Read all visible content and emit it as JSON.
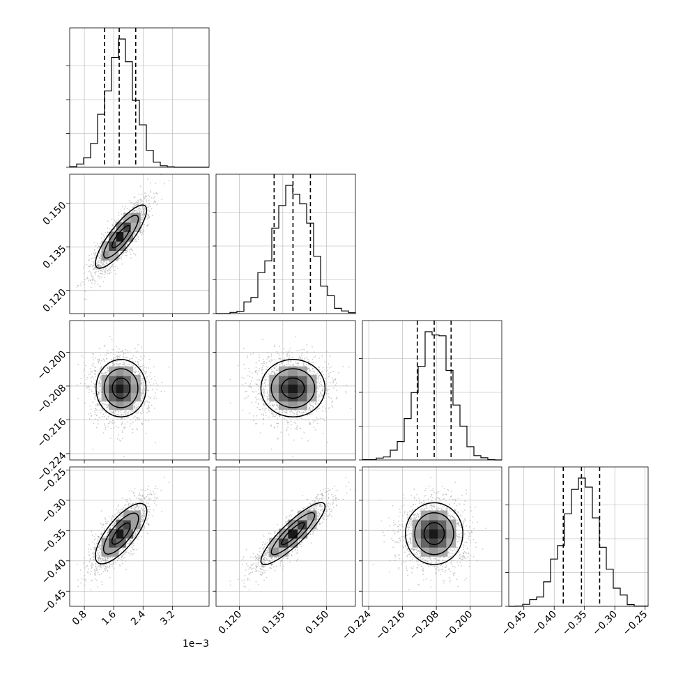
{
  "chart_data": {
    "type": "corner",
    "parameters": [
      {
        "range": [
          0.4,
          4.2
        ],
        "ticks": [
          "0.8",
          "1.6",
          "2.4",
          "3.2"
        ],
        "tick_values": [
          0.8,
          1.6,
          2.4,
          3.2
        ],
        "offset_label": "1e−3",
        "quantiles": [
          1.35,
          1.75,
          2.2
        ],
        "mean": 1.8,
        "std": 0.4
      },
      {
        "range": [
          0.112,
          0.16
        ],
        "ticks": [
          "0.120",
          "0.135",
          "0.150"
        ],
        "tick_values": [
          0.12,
          0.135,
          0.15
        ],
        "quantiles": [
          0.132,
          0.1385,
          0.1445
        ],
        "mean": 0.1385,
        "std": 0.0065
      },
      {
        "range": [
          -0.2255,
          -0.1925
        ],
        "ticks": [
          "−0.224",
          "−0.216",
          "−0.208",
          "−0.200"
        ],
        "tick_values": [
          -0.224,
          -0.216,
          -0.208,
          -0.2
        ],
        "quantiles": [
          -0.2125,
          -0.2085,
          -0.2045
        ],
        "mean": -0.2085,
        "std": 0.004
      },
      {
        "range": [
          -0.475,
          -0.245
        ],
        "ticks": [
          "−0.45",
          "−0.40",
          "−0.35",
          "−0.30",
          "−0.25"
        ],
        "tick_values": [
          -0.45,
          -0.4,
          -0.35,
          -0.3,
          -0.25
        ],
        "quantiles": [
          -0.385,
          -0.355,
          -0.325
        ],
        "mean": -0.355,
        "std": 0.03
      }
    ],
    "correlations": [
      [
        1,
        0.85,
        0.0,
        0.75
      ],
      [
        0.85,
        1,
        0.0,
        0.88
      ],
      [
        0.0,
        0.0,
        1,
        0.0
      ],
      [
        0.75,
        0.88,
        0.0,
        1
      ]
    ],
    "histogram_bins": 20,
    "grid": true,
    "colors": {
      "lines": "#000000",
      "points": "#9a9a9a",
      "grid": "#b0b0b0"
    }
  }
}
